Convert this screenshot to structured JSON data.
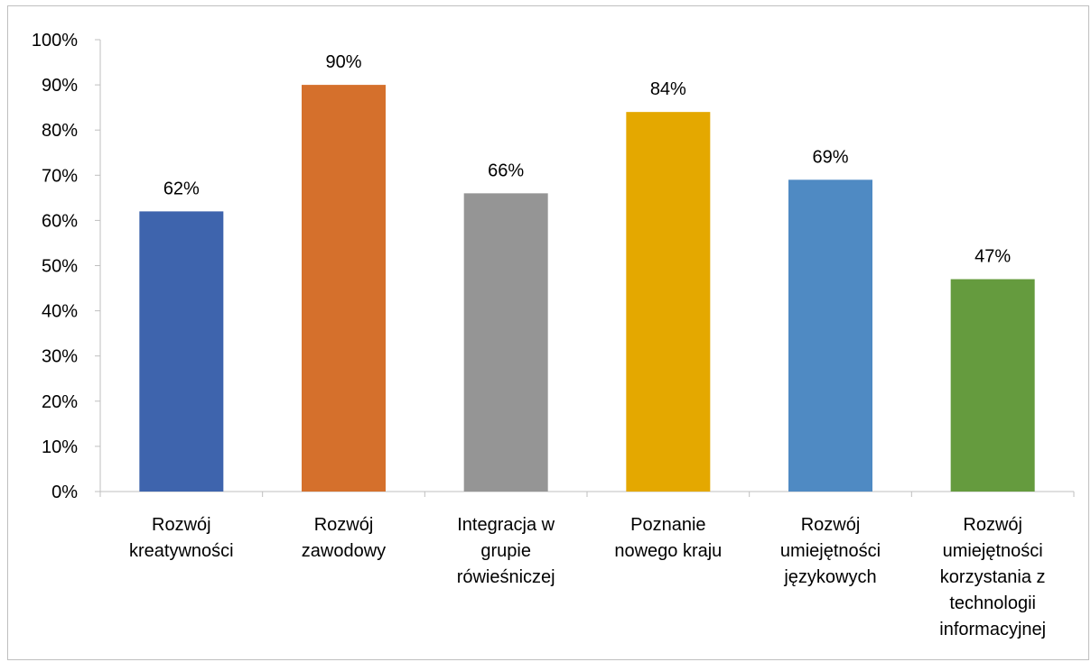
{
  "chart_data": {
    "type": "bar",
    "categories": [
      [
        "Rozwój",
        "kreatywności"
      ],
      [
        "Rozwój",
        "zawodowy"
      ],
      [
        "Integracja w",
        "grupie",
        "rówieśniczej"
      ],
      [
        "Poznanie",
        "nowego kraju"
      ],
      [
        "Rozwój",
        "umiejętności",
        "językowych"
      ],
      [
        "Rozwój",
        "umiejętności",
        "korzystania z",
        "technologii",
        "informacyjnej"
      ]
    ],
    "values": [
      62,
      90,
      66,
      84,
      69,
      47
    ],
    "data_labels": [
      "62%",
      "90%",
      "66%",
      "84%",
      "69%",
      "47%"
    ],
    "colors": [
      "#3e64ad",
      "#d5702c",
      "#959595",
      "#e4a800",
      "#4f8ac3",
      "#659b3e"
    ],
    "y_ticks": [
      "0%",
      "10%",
      "20%",
      "30%",
      "40%",
      "50%",
      "60%",
      "70%",
      "80%",
      "90%",
      "100%"
    ],
    "ylim": [
      0,
      100
    ],
    "grid": false,
    "legend": "none",
    "axis_color": "#bfbfbf"
  }
}
